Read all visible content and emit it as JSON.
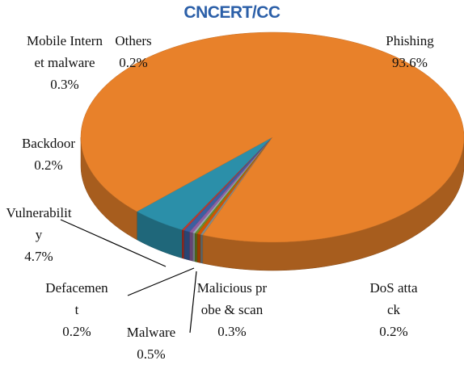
{
  "chart_data": {
    "type": "pie3d",
    "title": "CNCERT/CC",
    "categories": [
      "Vulnerability",
      "Defacement",
      "Malware",
      "Malicious probe & scan",
      "DoS attack",
      "Backdoor",
      "Mobile Internet malware",
      "Others",
      "Phishing"
    ],
    "values": [
      4.7,
      0.2,
      0.5,
      0.3,
      0.2,
      0.2,
      0.3,
      0.2,
      93.6
    ],
    "value_labels": [
      "4.7%",
      "0.2%",
      "0.5%",
      "0.3%",
      "0.2%",
      "0.2%",
      "0.3%",
      "0.2%",
      "93.6%"
    ],
    "colors": [
      "#2b8fa9",
      "#c0392b",
      "#3b5fa0",
      "#8e5ea2",
      "#9aa7b8",
      "#6b8e23",
      "#d35400",
      "#7f8c8d",
      "#e8812a"
    ]
  }
}
